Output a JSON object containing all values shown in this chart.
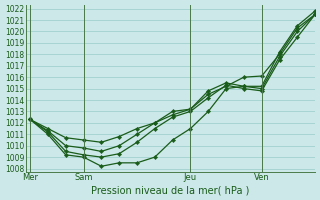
{
  "xlabel": "Pression niveau de la mer( hPa )",
  "ylim": [
    1008,
    1022
  ],
  "yticks": [
    1008,
    1009,
    1010,
    1011,
    1012,
    1013,
    1014,
    1015,
    1016,
    1017,
    1018,
    1019,
    1020,
    1021,
    1022
  ],
  "xtick_labels": [
    "Mer",
    "Sam",
    "Jeu",
    "Ven"
  ],
  "xtick_positions": [
    0,
    6,
    18,
    26
  ],
  "xlim": [
    -0.5,
    32
  ],
  "bg_color": "#cce8e8",
  "line_color": "#1a5c1a",
  "grid_color": "#99cccc",
  "line1_x": [
    0,
    2,
    4,
    6,
    8,
    10,
    12,
    14,
    16,
    18,
    20,
    22,
    24,
    26,
    28,
    30,
    32
  ],
  "line1_y": [
    1012.3,
    1011.5,
    1010.7,
    1010.5,
    1010.3,
    1010.8,
    1011.5,
    1012.0,
    1012.7,
    1013.2,
    1014.5,
    1015.2,
    1016.0,
    1016.1,
    1018.0,
    1020.3,
    1021.5
  ],
  "line2_x": [
    0,
    2,
    4,
    6,
    8,
    10,
    12,
    14,
    16,
    18,
    20,
    22,
    24,
    26,
    28,
    30,
    32
  ],
  "line2_y": [
    1012.3,
    1011.3,
    1010.0,
    1009.8,
    1009.5,
    1010.0,
    1011.0,
    1012.0,
    1013.0,
    1013.2,
    1014.8,
    1015.5,
    1015.2,
    1015.0,
    1017.8,
    1020.0,
    1021.5
  ],
  "line3_x": [
    0,
    2,
    4,
    6,
    8,
    10,
    12,
    14,
    16,
    18,
    20,
    22,
    24,
    26,
    28,
    30,
    32
  ],
  "line3_y": [
    1012.3,
    1011.2,
    1009.5,
    1009.2,
    1009.0,
    1009.3,
    1010.3,
    1011.5,
    1012.5,
    1013.0,
    1014.2,
    1015.3,
    1015.0,
    1014.8,
    1017.5,
    1019.5,
    1021.5
  ],
  "line4_x": [
    0,
    2,
    4,
    6,
    8,
    10,
    12,
    14,
    16,
    18,
    20,
    22,
    24,
    26,
    28,
    30,
    32
  ],
  "line4_y": [
    1012.3,
    1011.0,
    1009.2,
    1009.0,
    1008.2,
    1008.5,
    1008.5,
    1009.0,
    1010.5,
    1011.5,
    1013.0,
    1015.0,
    1015.2,
    1015.2,
    1018.2,
    1020.5,
    1021.8
  ],
  "vlines": [
    0,
    6,
    18,
    26
  ],
  "figsize": [
    3.2,
    2.0
  ],
  "dpi": 100
}
